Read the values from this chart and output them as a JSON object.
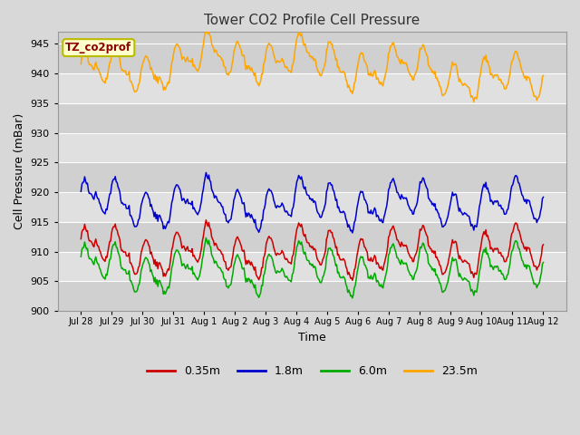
{
  "title": "Tower CO2 Profile Cell Pressure",
  "xlabel": "Time",
  "ylabel": "Cell Pressure (mBar)",
  "ylim": [
    900,
    947
  ],
  "yticks": [
    900,
    905,
    910,
    915,
    920,
    925,
    930,
    935,
    940,
    945
  ],
  "date_labels": [
    "Jul 28",
    "Jul 29",
    "Jul 30",
    "Jul 31",
    "Aug 1",
    "Aug 2",
    "Aug 3",
    "Aug 4",
    "Aug 5",
    "Aug 6",
    "Aug 7",
    "Aug 8",
    "Aug 9",
    "Aug 10",
    "Aug 11",
    "Aug 12"
  ],
  "series": [
    {
      "label": "0.35m",
      "color": "#cc0000",
      "base": 910.0
    },
    {
      "label": "1.8m",
      "color": "#0000cc",
      "base": 918.0
    },
    {
      "label": "6.0m",
      "color": "#00aa00",
      "base": 907.0
    },
    {
      "label": "23.5m",
      "color": "#ffa500",
      "base": 939.5
    }
  ],
  "bg_color": "#d8d8d8",
  "band_colors": [
    "#d0d0d0",
    "#e0e0e0"
  ],
  "grid_color": "#ffffff",
  "annotation_text": "TZ_co2prof",
  "annotation_color": "#8b0000",
  "annotation_bg": "#ffffcc",
  "annotation_border": "#bbbb00",
  "num_points": 500,
  "figsize": [
    6.4,
    4.8
  ],
  "dpi": 100
}
